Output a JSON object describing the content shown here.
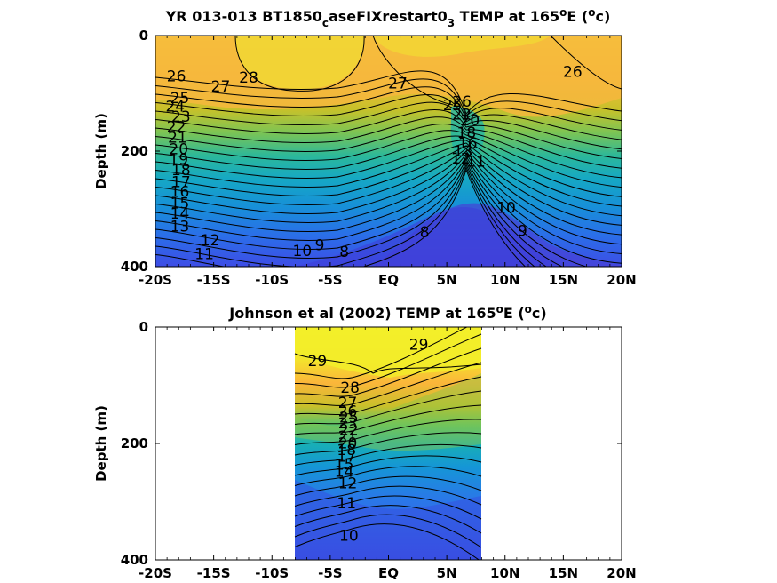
{
  "chart_data": [
    {
      "type": "heatmap",
      "title": {
        "pre": "YR 013-013 BT1850",
        "sub1": "c",
        "mid": "aseFIXrestart0",
        "sub2": "3",
        "post1": " TEMP at 165",
        "sup1": "o",
        "post2": "E (",
        "sup2": "o",
        "post3": "c)"
      },
      "xlabel": "",
      "ylabel": "Depth (m)",
      "xlim": [
        -20,
        20
      ],
      "ylim": [
        400,
        0
      ],
      "xticks": [
        -20,
        -15,
        -10,
        -5,
        0,
        5,
        10,
        15,
        20
      ],
      "xtick_labels": [
        "-20S",
        "-15S",
        "-10S",
        "-5S",
        "EQ",
        "5N",
        "10N",
        "15N",
        "20N"
      ],
      "yticks": [
        0,
        200,
        400
      ],
      "ytick_labels": [
        "0",
        "200",
        "400"
      ],
      "colormap": "parula",
      "contour_labels": [
        {
          "text": "26",
          "x": -18.2,
          "d": 70
        },
        {
          "text": "28",
          "x": -12.0,
          "d": 72
        },
        {
          "text": "27",
          "x": -14.4,
          "d": 88
        },
        {
          "text": "27",
          "x": 0.8,
          "d": 82
        },
        {
          "text": "26",
          "x": 15.8,
          "d": 62
        },
        {
          "text": "25",
          "x": -17.9,
          "d": 108
        },
        {
          "text": "24",
          "x": -18.3,
          "d": 122
        },
        {
          "text": "23",
          "x": -17.8,
          "d": 140
        },
        {
          "text": "22",
          "x": -18.2,
          "d": 158
        },
        {
          "text": "21",
          "x": -18.1,
          "d": 176
        },
        {
          "text": "20",
          "x": -18.0,
          "d": 196
        },
        {
          "text": "19",
          "x": -18.0,
          "d": 214
        },
        {
          "text": "18",
          "x": -17.8,
          "d": 232
        },
        {
          "text": "17",
          "x": -17.8,
          "d": 253
        },
        {
          "text": "16",
          "x": -17.9,
          "d": 270
        },
        {
          "text": "15",
          "x": -17.9,
          "d": 290
        },
        {
          "text": "14",
          "x": -17.9,
          "d": 308
        },
        {
          "text": "13",
          "x": -17.9,
          "d": 330
        },
        {
          "text": "12",
          "x": -15.3,
          "d": 354
        },
        {
          "text": "11",
          "x": -15.8,
          "d": 378
        },
        {
          "text": "10",
          "x": -7.4,
          "d": 372
        },
        {
          "text": "9",
          "x": -5.9,
          "d": 362
        },
        {
          "text": "8",
          "x": -3.8,
          "d": 374
        },
        {
          "text": "8",
          "x": 3.1,
          "d": 340
        },
        {
          "text": "10",
          "x": 10.1,
          "d": 298
        },
        {
          "text": "9",
          "x": 11.5,
          "d": 338
        },
        {
          "text": "25",
          "x": 5.5,
          "d": 120
        },
        {
          "text": "26",
          "x": 6.3,
          "d": 114
        },
        {
          "text": "22",
          "x": 6.3,
          "d": 136
        },
        {
          "text": "20",
          "x": 7.0,
          "d": 146
        },
        {
          "text": "18",
          "x": 6.7,
          "d": 168
        },
        {
          "text": "16",
          "x": 6.8,
          "d": 186
        },
        {
          "text": "13",
          "x": 6.4,
          "d": 200
        },
        {
          "text": "12",
          "x": 6.2,
          "d": 212
        },
        {
          "text": "11",
          "x": 7.5,
          "d": 218
        }
      ]
    },
    {
      "type": "heatmap",
      "title": {
        "pre": "Johnson et al (2002) TEMP at 165",
        "sup1": "o",
        "post2": "E (",
        "sup2": "o",
        "post3": "c)"
      },
      "xlabel": "",
      "ylabel": "Depth (m)",
      "xlim": [
        -20,
        20
      ],
      "ylim": [
        400,
        0
      ],
      "data_xrange": [
        -8,
        8
      ],
      "xticks": [
        -20,
        -15,
        -10,
        -5,
        0,
        5,
        10,
        15,
        20
      ],
      "xtick_labels": [
        "-20S",
        "-15S",
        "-10S",
        "-5S",
        "EQ",
        "5N",
        "10N",
        "15N",
        "20N"
      ],
      "yticks": [
        0,
        200,
        400
      ],
      "ytick_labels": [
        "0",
        "200",
        "400"
      ],
      "colormap": "parula",
      "contour_labels": [
        {
          "text": "29",
          "x": -6.1,
          "d": 58
        },
        {
          "text": "29",
          "x": 2.6,
          "d": 30
        },
        {
          "text": "28",
          "x": -3.3,
          "d": 104
        },
        {
          "text": "27",
          "x": -3.5,
          "d": 130
        },
        {
          "text": "26",
          "x": -3.5,
          "d": 144
        },
        {
          "text": "25",
          "x": -3.4,
          "d": 155
        },
        {
          "text": "23",
          "x": -3.5,
          "d": 165
        },
        {
          "text": "22",
          "x": -3.4,
          "d": 176
        },
        {
          "text": "21",
          "x": -3.5,
          "d": 188
        },
        {
          "text": "20",
          "x": -3.5,
          "d": 199
        },
        {
          "text": "18",
          "x": -3.6,
          "d": 211
        },
        {
          "text": "17",
          "x": -3.6,
          "d": 222
        },
        {
          "text": "15",
          "x": -3.8,
          "d": 236
        },
        {
          "text": "14",
          "x": -3.8,
          "d": 248
        },
        {
          "text": "12",
          "x": -3.5,
          "d": 268
        },
        {
          "text": "11",
          "x": -3.6,
          "d": 302
        },
        {
          "text": "10",
          "x": -3.4,
          "d": 358
        }
      ]
    }
  ]
}
